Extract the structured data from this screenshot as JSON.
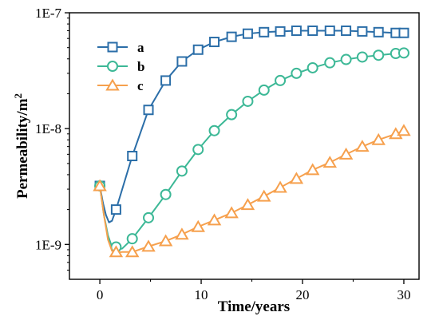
{
  "chart_data": {
    "type": "line",
    "xlabel": "Time/years",
    "ylabel": "Permeability/m²",
    "ylabel_base": "Permeability/m",
    "ylabel_sup": "2",
    "xlim": [
      -3,
      31.5
    ],
    "ylim": [
      5e-10,
      1e-07
    ],
    "yscale": "log",
    "xticks": [
      0,
      10,
      20,
      30
    ],
    "xtick_labels": [
      "0",
      "10",
      "20",
      "30"
    ],
    "yticks": [
      1e-09,
      1e-08,
      1e-07
    ],
    "ytick_labels": [
      "1E-9",
      "1E-8",
      "1E-7"
    ],
    "legend_position": "top-left",
    "series": [
      {
        "name": "a",
        "color": "#2b6ea8",
        "marker": "square",
        "x": [
          0,
          1.6,
          3.2,
          4.8,
          6.5,
          8.1,
          9.7,
          11.3,
          13.0,
          14.6,
          16.2,
          17.8,
          19.4,
          21.0,
          22.7,
          24.3,
          25.9,
          27.5,
          29.2,
          30.0
        ],
        "y": [
          3.2e-09,
          2e-09,
          5.8e-09,
          1.45e-08,
          2.6e-08,
          3.8e-08,
          4.8e-08,
          5.6e-08,
          6.2e-08,
          6.6e-08,
          6.8e-08,
          6.9e-08,
          7e-08,
          7e-08,
          7e-08,
          7e-08,
          6.9e-08,
          6.8e-08,
          6.7e-08,
          6.7e-08
        ],
        "curve_x": [
          0,
          0.3,
          0.6,
          0.9,
          1.2,
          1.6
        ],
        "curve_y": [
          3.2e-09,
          2.3e-09,
          1.8e-09,
          1.55e-09,
          1.6e-09,
          2e-09
        ]
      },
      {
        "name": "b",
        "color": "#3cb896",
        "marker": "circle",
        "x": [
          0,
          1.6,
          3.2,
          4.8,
          6.5,
          8.1,
          9.7,
          11.3,
          13.0,
          14.6,
          16.2,
          17.8,
          19.4,
          21.0,
          22.7,
          24.3,
          25.9,
          27.5,
          29.2,
          30.0
        ],
        "y": [
          3.2e-09,
          9.5e-10,
          1.12e-09,
          1.7e-09,
          2.7e-09,
          4.3e-09,
          6.6e-09,
          9.6e-09,
          1.32e-08,
          1.72e-08,
          2.15e-08,
          2.6e-08,
          3e-08,
          3.35e-08,
          3.7e-08,
          3.95e-08,
          4.15e-08,
          4.3e-08,
          4.45e-08,
          4.5e-08
        ],
        "curve_x": [
          0,
          0.4,
          0.8,
          1.2,
          1.6,
          2.2
        ],
        "curve_y": [
          3.2e-09,
          1.8e-09,
          1.2e-09,
          9.5e-10,
          9e-10,
          9.2e-10
        ]
      },
      {
        "name": "c",
        "color": "#f6a04d",
        "marker": "triangle",
        "x": [
          0,
          1.6,
          3.2,
          4.8,
          6.5,
          8.1,
          9.7,
          11.3,
          13.0,
          14.6,
          16.2,
          17.8,
          19.4,
          21.0,
          22.7,
          24.3,
          25.9,
          27.5,
          29.2,
          30.0
        ],
        "y": [
          3.2e-09,
          8.6e-10,
          8.6e-10,
          9.6e-10,
          1.07e-09,
          1.22e-09,
          1.42e-09,
          1.62e-09,
          1.87e-09,
          2.2e-09,
          2.6e-09,
          3.1e-09,
          3.7e-09,
          4.4e-09,
          5.1e-09,
          6e-09,
          7e-09,
          8e-09,
          9e-09,
          9.6e-09
        ],
        "curve_x": [
          0,
          0.4,
          0.8,
          1.2,
          1.6,
          2.2
        ],
        "curve_y": [
          3.2e-09,
          1.8e-09,
          1.1e-09,
          8.8e-10,
          8.5e-10,
          8.6e-10
        ]
      }
    ]
  }
}
